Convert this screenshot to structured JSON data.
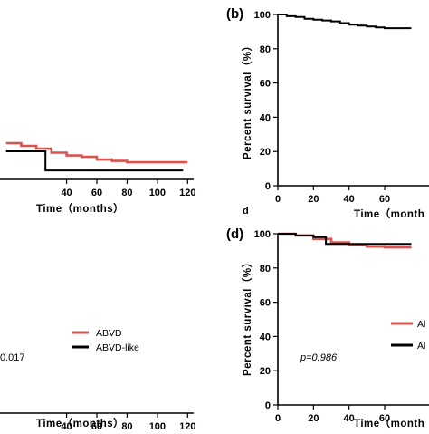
{
  "chart_data": [
    {
      "panel": "a",
      "panel_label": "",
      "type": "line",
      "xlabel": "Time（months）",
      "ylabel": "",
      "x_ticks": [
        40,
        60,
        80,
        100,
        120
      ],
      "series": [
        {
          "color": "#000000",
          "points": [
            [
              0,
              99
            ],
            [
              6,
              98
            ],
            [
              10,
              97
            ],
            [
              15,
              96.5
            ],
            [
              20,
              96
            ],
            [
              25,
              95.5
            ],
            [
              30,
              95
            ],
            [
              35,
              94.5
            ],
            [
              40,
              94
            ],
            [
              45,
              93
            ],
            [
              50,
              92.5
            ],
            [
              55,
              91.5
            ],
            [
              60,
              91.5
            ],
            [
              80,
              91.5
            ],
            [
              100,
              91.5
            ],
            [
              120,
              91.5
            ]
          ]
        }
      ]
    },
    {
      "panel": "b",
      "panel_label": "(b)",
      "type": "line",
      "xlabel": "Time（month",
      "ylabel": "Percent survival（%）",
      "x_ticks": [
        0,
        20,
        40,
        60
      ],
      "y_ticks": [
        0,
        20,
        40,
        60,
        80,
        100
      ],
      "ylim": [
        0,
        100
      ],
      "series": [
        {
          "color": "#000000",
          "points": [
            [
              0,
              100
            ],
            [
              5,
              99
            ],
            [
              10,
              98.5
            ],
            [
              15,
              97.5
            ],
            [
              20,
              97
            ],
            [
              25,
              96.5
            ],
            [
              30,
              96
            ],
            [
              35,
              95
            ],
            [
              40,
              94
            ],
            [
              45,
              93.5
            ],
            [
              50,
              93
            ],
            [
              55,
              92.5
            ],
            [
              60,
              92
            ],
            [
              75,
              92
            ]
          ]
        }
      ]
    },
    {
      "panel": "c",
      "panel_label": "",
      "type": "line",
      "xlabel": "Time（months）",
      "ylabel": "",
      "x_ticks": [
        40,
        60,
        80,
        100,
        120
      ],
      "p_value_text": "0.017",
      "legend": [
        "ABVD",
        "ABVD-like"
      ],
      "series": [
        {
          "name": "ABVD",
          "color": "#d9534f",
          "points": [
            [
              0,
              99
            ],
            [
              10,
              98
            ],
            [
              20,
              97
            ],
            [
              30,
              95.5
            ],
            [
              40,
              94.5
            ],
            [
              50,
              94
            ],
            [
              60,
              93
            ],
            [
              70,
              92.5
            ],
            [
              80,
              92
            ],
            [
              100,
              92
            ],
            [
              120,
              92
            ]
          ]
        },
        {
          "name": "ABVD-like",
          "color": "#000000",
          "points": [
            [
              0,
              96
            ],
            [
              24,
              96
            ],
            [
              26,
              89
            ],
            [
              60,
              89
            ],
            [
              117,
              89
            ]
          ]
        }
      ]
    },
    {
      "panel": "d",
      "panel_label": "(d)",
      "type": "line",
      "xlabel": "Time（month",
      "ylabel": "Percent survival（%）",
      "x_ticks": [
        0,
        20,
        40,
        60
      ],
      "y_ticks": [
        0,
        20,
        40,
        60,
        80,
        100
      ],
      "ylim": [
        0,
        100
      ],
      "p_value_text": "p=0.986",
      "legend": [
        "Al",
        "Al"
      ],
      "series": [
        {
          "name": "Al",
          "color": "#d9534f",
          "points": [
            [
              0,
              100
            ],
            [
              10,
              99
            ],
            [
              20,
              97
            ],
            [
              30,
              95
            ],
            [
              40,
              93.5
            ],
            [
              50,
              92.5
            ],
            [
              60,
              92
            ],
            [
              75,
              92
            ]
          ]
        },
        {
          "name": "Al",
          "color": "#000000",
          "points": [
            [
              0,
              100
            ],
            [
              10,
              99
            ],
            [
              20,
              98
            ],
            [
              25,
              98
            ],
            [
              27,
              94
            ],
            [
              45,
              94
            ],
            [
              60,
              94
            ],
            [
              75,
              94
            ]
          ]
        }
      ]
    }
  ],
  "panel_c_extra": {
    "caption_d": "d"
  }
}
